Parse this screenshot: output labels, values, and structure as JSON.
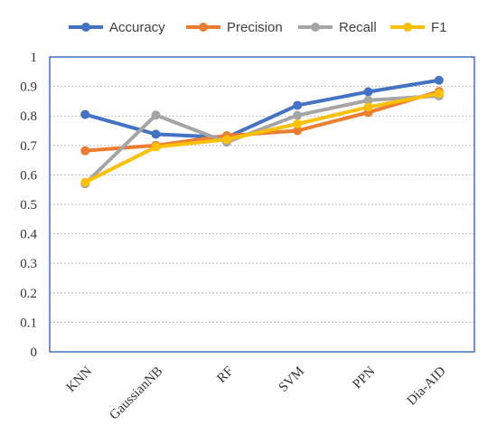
{
  "chart_data": {
    "type": "line",
    "title": "",
    "xlabel": "",
    "ylabel": "",
    "categories": [
      "KNN",
      "GaussianNB",
      "RF",
      "SVM",
      "PPN",
      "Dia-AID"
    ],
    "ylim": [
      0,
      1
    ],
    "yticks": [
      "0",
      "0.1",
      "0.2",
      "0.3",
      "0.4",
      "0.5",
      "0.6",
      "0.7",
      "0.8",
      "0.9",
      "1"
    ],
    "grid": true,
    "legend_position": "top",
    "series": [
      {
        "name": "Accuracy",
        "color": "#4472c4",
        "values": [
          0.805,
          0.738,
          0.727,
          0.836,
          0.882,
          0.921
        ]
      },
      {
        "name": "Precision",
        "color": "#ed7d31",
        "values": [
          0.682,
          0.7,
          0.733,
          0.75,
          0.812,
          0.883
        ]
      },
      {
        "name": "Recall",
        "color": "#a5a5a5",
        "values": [
          0.57,
          0.803,
          0.711,
          0.802,
          0.853,
          0.868
        ]
      },
      {
        "name": "F1",
        "color": "#ffc000",
        "values": [
          0.575,
          0.695,
          0.72,
          0.773,
          0.83,
          0.876
        ]
      }
    ]
  }
}
